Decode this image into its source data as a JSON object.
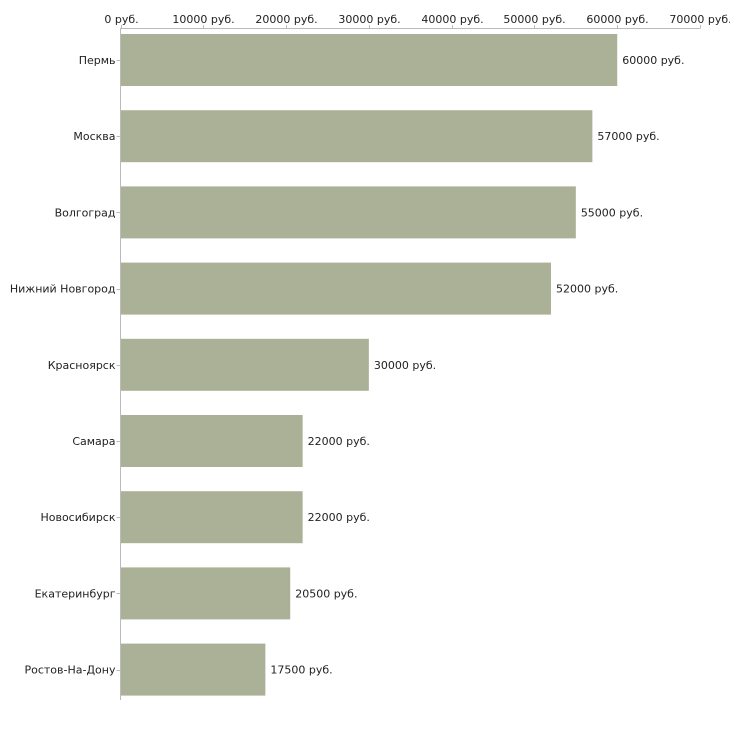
{
  "chart_data": {
    "type": "bar",
    "orientation": "horizontal",
    "categories": [
      "Пермь",
      "Москва",
      "Волгоград",
      "Нижний Новгород",
      "Красноярск",
      "Самара",
      "Новосибирск",
      "Екатеринбург",
      "Ростов-На-Дону"
    ],
    "values": [
      60000,
      57000,
      55000,
      52000,
      30000,
      22000,
      22000,
      20500,
      17500
    ],
    "value_labels": [
      "60000 руб.",
      "57000 руб.",
      "55000 руб.",
      "52000 руб.",
      "30000 руб.",
      "22000 руб.",
      "22000 руб.",
      "20500 руб.",
      "17500 руб."
    ],
    "x_ticks": [
      0,
      10000,
      20000,
      30000,
      40000,
      50000,
      60000,
      70000
    ],
    "x_tick_labels": [
      "0 руб.",
      "10000 руб.",
      "20000 руб.",
      "30000 руб.",
      "40000 руб.",
      "50000 руб.",
      "60000 руб.",
      "70000 руб."
    ],
    "xlim": [
      0,
      70000
    ],
    "axis_position": "top",
    "grid": false,
    "title": "",
    "xlabel": "",
    "ylabel": "",
    "bar_color": "#abb197",
    "axis_color": "#bbbbbb"
  }
}
